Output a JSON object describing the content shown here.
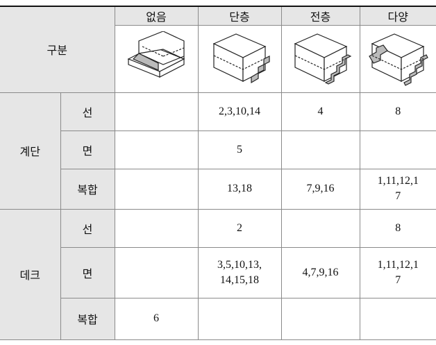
{
  "table": {
    "corner": "구분",
    "columns": [
      "없음",
      "단층",
      "전층",
      "다양"
    ],
    "groups": [
      {
        "label": "계단",
        "rows": [
          {
            "label": "선",
            "cells": [
              null,
              "2,3,10,14",
              "4",
              "8"
            ]
          },
          {
            "label": "면",
            "cells": [
              null,
              "5",
              null,
              null
            ]
          },
          {
            "label": "복합",
            "cells": [
              null,
              "13,18",
              "7,9,16",
              "1,11,12,17"
            ]
          }
        ]
      },
      {
        "label": "데크",
        "rows": [
          {
            "label": "선",
            "cells": [
              null,
              "2",
              null,
              "8"
            ]
          },
          {
            "label": "면",
            "cells": [
              null,
              "3,5,10,13,14,15,18",
              "4,7,9,16",
              "1,11,12,17"
            ]
          },
          {
            "label": "복합",
            "cells": [
              "6",
              null,
              null,
              null
            ]
          }
        ]
      }
    ]
  }
}
